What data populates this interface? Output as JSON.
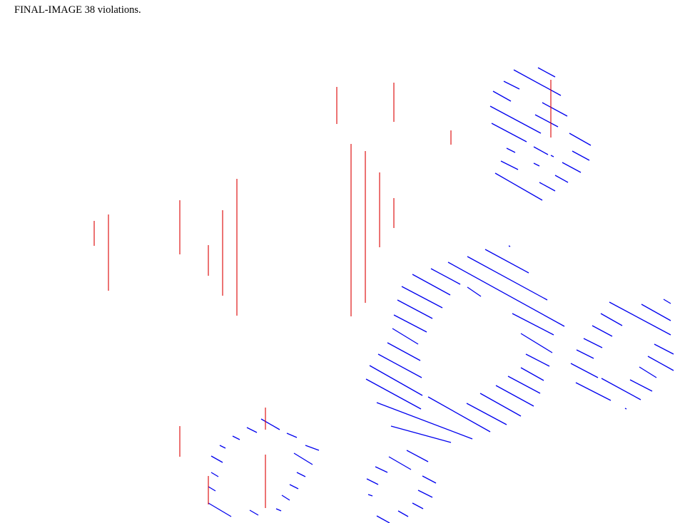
{
  "status_text": "FINAL-IMAGE 38 violations.",
  "colors": {
    "background": "#ffffff",
    "text": "#000000",
    "violation_stroke": "#dd0000",
    "hatch_stroke": "#0000ee"
  }
}
